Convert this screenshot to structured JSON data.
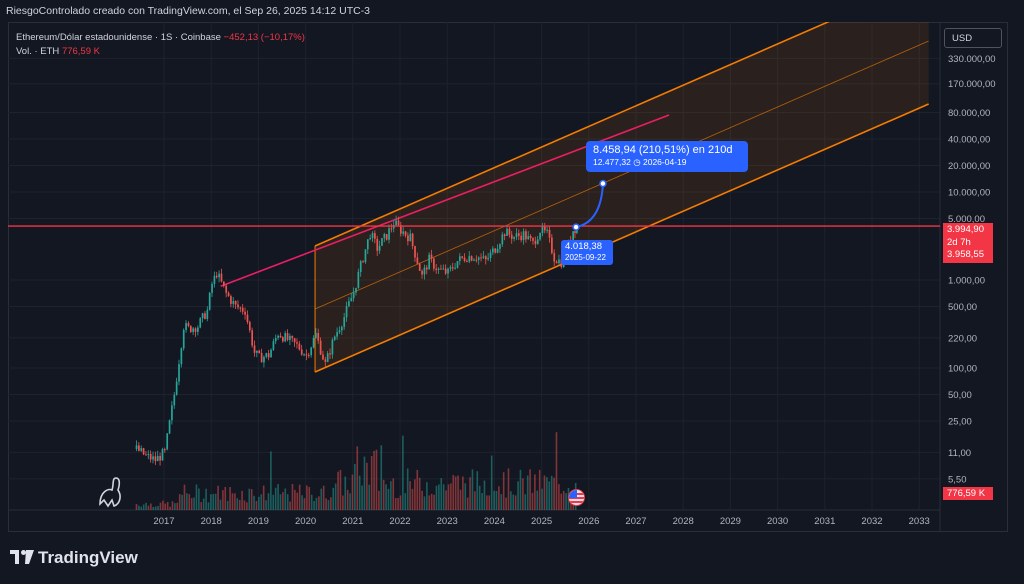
{
  "header": {
    "title": "RiesgoControlado creado con TradingView.com, el Sep 26, 2025 14:12 UTC-3"
  },
  "legend": {
    "symbol": "Ethereum/Dólar estadounidense · 1S · Coinbase",
    "change": "−452,13 (−10,17%)",
    "volume_label": "Vol. · ETH",
    "volume_value": "776,59 K"
  },
  "currency_button": "USD",
  "price_tag": {
    "price": "3.994,90",
    "countdown": "2d 7h",
    "secondary": "3.958,55"
  },
  "volume_tag": "776,59 K",
  "projection": {
    "main": "8.458,94 (210,51%) en 210d",
    "target": "12.477,32",
    "date": "2026-04-19",
    "target_icon": "clock-icon"
  },
  "low_label": {
    "price": "4.018,38",
    "date": "2025-09-22"
  },
  "footer": {
    "brand": "TradingView"
  },
  "colors": {
    "up": "#26a69a",
    "down": "#ef5350",
    "accent": "#2962ff",
    "channel": "#f57c00",
    "resistance": "#e91e63",
    "price_line": "#f23645"
  },
  "chart_data": {
    "type": "line",
    "symbol": "ETHUSD",
    "scale": "log",
    "ylim": [
      5,
      500000
    ],
    "yticks": [
      {
        "value": 330000,
        "label": "330.000,00"
      },
      {
        "value": 170000,
        "label": "170.000,00"
      },
      {
        "value": 80000,
        "label": "80.000,00"
      },
      {
        "value": 40000,
        "label": "40.000,00"
      },
      {
        "value": 20000,
        "label": "20.000,00"
      },
      {
        "value": 10000,
        "label": "10.000,00"
      },
      {
        "value": 5000,
        "label": "5.000,00"
      },
      {
        "value": 1000,
        "label": "1.000,00"
      },
      {
        "value": 500,
        "label": "500,00"
      },
      {
        "value": 220,
        "label": "220,00"
      },
      {
        "value": 100,
        "label": "100,00"
      },
      {
        "value": 50,
        "label": "50,00"
      },
      {
        "value": 25,
        "label": "25,00"
      },
      {
        "value": 11,
        "label": "11,00"
      },
      {
        "value": 5.5,
        "label": "5,50"
      }
    ],
    "xticks": [
      "2017",
      "2018",
      "2019",
      "2020",
      "2021",
      "2022",
      "2023",
      "2024",
      "2025",
      "2026",
      "2027",
      "2028",
      "2029",
      "2030",
      "2031",
      "2032",
      "2033"
    ],
    "xrange": [
      2016.2,
      2033.4
    ],
    "series": [
      {
        "name": "ETHUSD",
        "x": [
          2016.4,
          2016.6,
          2016.8,
          2017.0,
          2017.2,
          2017.4,
          2017.5,
          2017.7,
          2017.9,
          2018.0,
          2018.1,
          2018.3,
          2018.5,
          2018.7,
          2018.9,
          2019.0,
          2019.2,
          2019.4,
          2019.6,
          2019.8,
          2020.0,
          2020.2,
          2020.4,
          2020.6,
          2020.8,
          2021.0,
          2021.2,
          2021.35,
          2021.5,
          2021.7,
          2021.85,
          2022.0,
          2022.2,
          2022.45,
          2022.6,
          2022.8,
          2023.0,
          2023.2,
          2023.4,
          2023.6,
          2023.8,
          2024.0,
          2024.2,
          2024.4,
          2024.6,
          2024.8,
          2024.95,
          2025.1,
          2025.25,
          2025.4,
          2025.55,
          2025.65,
          2025.73
        ],
        "y": [
          12,
          10,
          9,
          11,
          50,
          300,
          280,
          300,
          450,
          900,
          1200,
          700,
          500,
          450,
          150,
          130,
          140,
          250,
          210,
          180,
          140,
          240,
          110,
          230,
          380,
          730,
          1800,
          3400,
          2300,
          3200,
          4500,
          3700,
          3000,
          1100,
          1700,
          1300,
          1200,
          1650,
          1850,
          1850,
          1650,
          2300,
          3500,
          3100,
          3300,
          2600,
          3700,
          3300,
          1800,
          1600,
          2500,
          3700,
          4100
        ]
      }
    ],
    "channel": {
      "start": {
        "x": 2020.2,
        "y": 90
      },
      "end": {
        "x": 2033.2,
        "y": 100000
      },
      "width_factor": 5.2
    },
    "resistance": {
      "start": {
        "x": 2018.2,
        "y": 850
      },
      "end": {
        "x": 2027.7,
        "y": 75000
      }
    },
    "horizontal_line": 4100,
    "projection_point": {
      "x": 2026.3,
      "y": 12477.32
    },
    "current": {
      "x": 2025.73,
      "y": 3994.9
    },
    "volume": {
      "max": 700000,
      "last": 776590
    }
  }
}
